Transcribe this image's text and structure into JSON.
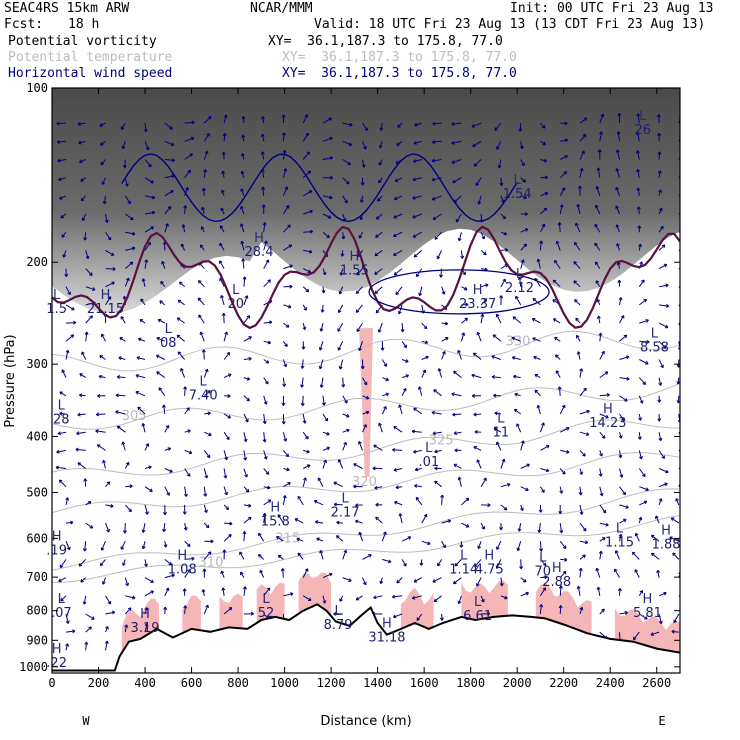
{
  "header": {
    "model": "SEAC4RS 15km ARW",
    "org": "NCAR/MMM",
    "init": "Init: 00 UTC Fri 23 Aug 13",
    "fcst_label": "Fcst:",
    "fcst_value": "18 h",
    "valid": "Valid: 18 UTC Fri 23 Aug 13 (13 CDT Fri 23 Aug 13)",
    "fields": [
      {
        "name": "Potential vorticity",
        "xy": "XY=  36.1,187.3 to 175.8, 77.0",
        "color": "#000000"
      },
      {
        "name": "Potential temperature",
        "xy": "XY=  36.1,187.3 to 175.8, 77.0",
        "color": "#bdbdbd"
      },
      {
        "name": "Horizontal wind speed",
        "xy": "XY=  36.1,187.3 to 175.8, 77.0",
        "color": "#000080"
      }
    ]
  },
  "chart_data": {
    "type": "cross-section",
    "xlabel": "Distance (km)",
    "ylabel": "Pressure (hPa)",
    "xlim": [
      0,
      2700
    ],
    "ylim": [
      1025,
      100
    ],
    "y_scale": "log",
    "x_ticks": [
      0,
      200,
      400,
      600,
      800,
      1000,
      1200,
      1400,
      1600,
      1800,
      2000,
      2200,
      2400,
      2600
    ],
    "y_ticks": [
      100,
      200,
      300,
      400,
      500,
      600,
      700,
      800,
      900,
      1000
    ],
    "x_end_labels": {
      "left": "W",
      "right": "E"
    },
    "colors": {
      "pv": "#5a1040",
      "wind_contour": "#000080",
      "theta": "#bdbdbd",
      "shade": "#f4b6b6",
      "terrain": "#000000"
    },
    "terrain": [
      {
        "x": 0,
        "p": 1015
      },
      {
        "x": 270,
        "p": 1015
      },
      {
        "x": 290,
        "p": 960
      },
      {
        "x": 330,
        "p": 905
      },
      {
        "x": 380,
        "p": 895
      },
      {
        "x": 450,
        "p": 860
      },
      {
        "x": 520,
        "p": 890
      },
      {
        "x": 600,
        "p": 860
      },
      {
        "x": 680,
        "p": 870
      },
      {
        "x": 760,
        "p": 855
      },
      {
        "x": 840,
        "p": 860
      },
      {
        "x": 900,
        "p": 830
      },
      {
        "x": 960,
        "p": 820
      },
      {
        "x": 1020,
        "p": 830
      },
      {
        "x": 1080,
        "p": 800
      },
      {
        "x": 1140,
        "p": 780
      },
      {
        "x": 1180,
        "p": 800
      },
      {
        "x": 1220,
        "p": 835
      },
      {
        "x": 1280,
        "p": 850
      },
      {
        "x": 1330,
        "p": 815
      },
      {
        "x": 1370,
        "p": 790
      },
      {
        "x": 1400,
        "p": 840
      },
      {
        "x": 1440,
        "p": 880
      },
      {
        "x": 1500,
        "p": 860
      },
      {
        "x": 1560,
        "p": 840
      },
      {
        "x": 1620,
        "p": 860
      },
      {
        "x": 1680,
        "p": 840
      },
      {
        "x": 1760,
        "p": 820
      },
      {
        "x": 1820,
        "p": 830
      },
      {
        "x": 1900,
        "p": 820
      },
      {
        "x": 1980,
        "p": 815
      },
      {
        "x": 2060,
        "p": 820
      },
      {
        "x": 2120,
        "p": 825
      },
      {
        "x": 2200,
        "p": 845
      },
      {
        "x": 2300,
        "p": 875
      },
      {
        "x": 2400,
        "p": 895
      },
      {
        "x": 2500,
        "p": 905
      },
      {
        "x": 2600,
        "p": 930
      },
      {
        "x": 2700,
        "p": 945
      }
    ],
    "theta_contours": [
      {
        "label": "305",
        "p_start": 380,
        "p_end": 330
      },
      {
        "label": "310",
        "p_start": 705,
        "p_end": 560
      },
      {
        "label": "315",
        "p_start": 670,
        "p_end": 500
      },
      {
        "label": "320",
        "p_start": 540,
        "p_end": 430
      },
      {
        "label": "325",
        "p_start": 470,
        "p_end": 375
      },
      {
        "label": "330",
        "p_start": 300,
        "p_end": 270
      }
    ],
    "annotations": [
      {
        "kind": "L",
        "value": "1.5",
        "x": 20,
        "p": 245
      },
      {
        "kind": "H",
        "value": "21.15",
        "x": 230,
        "p": 245
      },
      {
        "kind": "H",
        "value": "28.4",
        "x": 890,
        "p": 195
      },
      {
        "kind": "L",
        "value": "20",
        "x": 790,
        "p": 240
      },
      {
        "kind": "H",
        "value": "1.55",
        "x": 1300,
        "p": 210
      },
      {
        "kind": "L",
        "value": "1.54",
        "x": 2000,
        "p": 155
      },
      {
        "kind": "L",
        "value": "26",
        "x": 2540,
        "p": 120
      },
      {
        "kind": "L",
        "value": "2.12",
        "x": 2010,
        "p": 225
      },
      {
        "kind": "H",
        "value": "23.37",
        "x": 1830,
        "p": 240
      },
      {
        "kind": "L",
        "value": "08",
        "x": 500,
        "p": 280
      },
      {
        "kind": "L",
        "value": "7.40",
        "x": 650,
        "p": 345
      },
      {
        "kind": "L",
        "value": "28",
        "x": 40,
        "p": 380
      },
      {
        "kind": "L",
        "value": "8.58",
        "x": 2590,
        "p": 285
      },
      {
        "kind": "H",
        "value": "14.23",
        "x": 2390,
        "p": 385
      },
      {
        "kind": "L",
        "value": "11",
        "x": 1930,
        "p": 400
      },
      {
        "kind": "L",
        "value": ".01",
        "x": 1620,
        "p": 450
      },
      {
        "kind": "H",
        "value": "15.8",
        "x": 960,
        "p": 570
      },
      {
        "kind": "L",
        "value": "2.17",
        "x": 1260,
        "p": 550
      },
      {
        "kind": "L",
        "value": "1.15",
        "x": 2440,
        "p": 620
      },
      {
        "kind": "H",
        "value": "1.88",
        "x": 2640,
        "p": 625
      },
      {
        "kind": "H",
        "value": ".19",
        "x": 20,
        "p": 640
      },
      {
        "kind": "H",
        "value": "1.08",
        "x": 560,
        "p": 690
      },
      {
        "kind": "L",
        "value": "1.14",
        "x": 1770,
        "p": 690
      },
      {
        "kind": "H",
        "value": "4.75",
        "x": 1880,
        "p": 690
      },
      {
        "kind": "L",
        "value": "70",
        "x": 2110,
        "p": 695
      },
      {
        "kind": "H",
        "value": "2.88",
        "x": 2170,
        "p": 725
      },
      {
        "kind": "L",
        "value": ".07",
        "x": 40,
        "p": 820
      },
      {
        "kind": "L",
        "value": "52",
        "x": 920,
        "p": 820
      },
      {
        "kind": "H",
        "value": "5.81",
        "x": 2560,
        "p": 820
      },
      {
        "kind": "H",
        "value": "3.19",
        "x": 400,
        "p": 870
      },
      {
        "kind": "L",
        "value": "8.79",
        "x": 1230,
        "p": 860
      },
      {
        "kind": "H",
        "value": "31.18",
        "x": 1440,
        "p": 905
      },
      {
        "kind": "L",
        "value": "6.61",
        "x": 1830,
        "p": 830
      },
      {
        "kind": "H",
        "value": ".22",
        "x": 20,
        "p": 1000
      }
    ]
  }
}
